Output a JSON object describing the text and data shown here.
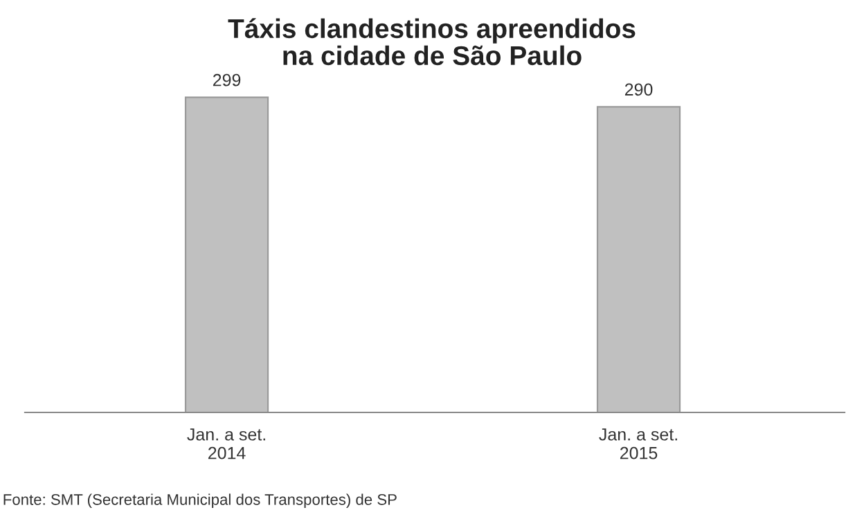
{
  "chart_data": {
    "type": "bar",
    "title": "Táxis clandestinos apreendidos\nna cidade de São Paulo",
    "categories": [
      "Jan. a set.\n2014",
      "Jan. a set.\n2015"
    ],
    "values": [
      299,
      290
    ],
    "color": "#c0c0c0",
    "data_labels": true,
    "grid": false,
    "legend": false,
    "tick_labels": "x",
    "annotations": [
      "Fonte: SMT (Secretaria Municipal dos Transportes) de SP"
    ]
  }
}
